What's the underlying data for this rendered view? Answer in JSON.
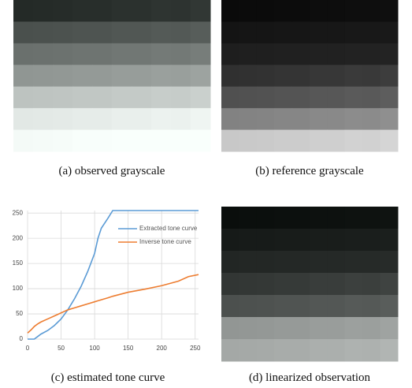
{
  "captions": [
    "(a) observed grayscale",
    "(b) reference grayscale",
    "(c) estimated tone curve",
    "(d) linearized observation"
  ],
  "chart_data": {
    "type": "line",
    "x": [
      0,
      5,
      10,
      15,
      20,
      30,
      40,
      50,
      60,
      70,
      80,
      90,
      100,
      105,
      110,
      120,
      127,
      150,
      175,
      200,
      225,
      240,
      255
    ],
    "series": [
      {
        "name": "Extracted tone curve",
        "color": "#5b9bd5",
        "values": [
          0,
          0,
          0,
          5,
          10,
          17,
          27,
          40,
          58,
          80,
          105,
          135,
          170,
          200,
          220,
          240,
          255,
          255,
          255,
          255,
          255,
          255,
          255
        ]
      },
      {
        "name": "Inverse tone curve",
        "color": "#ed7d31",
        "values": [
          12,
          18,
          25,
          30,
          34,
          40,
          46,
          52,
          58,
          62,
          66,
          70,
          74,
          76,
          78,
          82,
          85,
          93,
          99,
          106,
          115,
          124,
          128
        ]
      }
    ],
    "xlim": [
      0,
      255
    ],
    "ylim": [
      0,
      255
    ],
    "xticks": [
      0,
      50,
      100,
      150,
      200,
      250
    ],
    "yticks": [
      0,
      50,
      100,
      150,
      200,
      250
    ],
    "grid": true,
    "legend": "upper right"
  }
}
